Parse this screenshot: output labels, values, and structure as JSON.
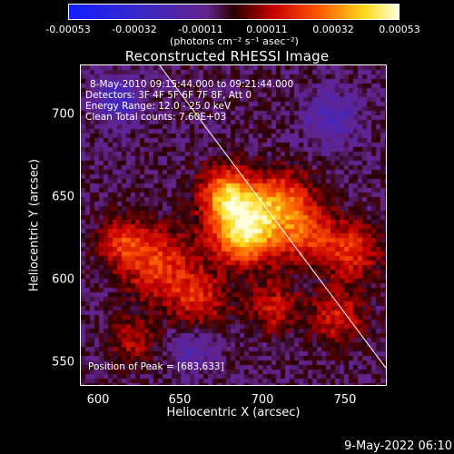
{
  "colorbar": {
    "ticks": [
      "-0.00053",
      "-0.00032",
      "-0.00011",
      "0.00011",
      "0.00032",
      "0.00053"
    ],
    "units": "(photons cm⁻² s⁻¹ asec⁻²)"
  },
  "title": "Reconstructed RHESSI Image",
  "annotations": {
    "time_range": "8-May-2010 09:15:44.000 to 09:21:44.000",
    "detectors": "Detectors: 3F 4F 5F 6F 7F 8F, Att 0",
    "energy": "Energy Range: 12.0 - 25.0 keV",
    "method": "Clean     Total counts: 7.60E+03",
    "peak": "Position of Peak = [683,633]"
  },
  "axes": {
    "xlabel": "Heliocentric X (arcsec)",
    "ylabel": "Heliocentric Y (arcsec)",
    "xticks": [
      "600",
      "650",
      "700",
      "750"
    ],
    "yticks": [
      "700",
      "650",
      "600",
      "550"
    ]
  },
  "footer": "9-May-2022 06:10",
  "chart_data": {
    "type": "heatmap",
    "title": "Reconstructed RHESSI Image",
    "xlabel": "Heliocentric X (arcsec)",
    "ylabel": "Heliocentric Y (arcsec)",
    "xlim": [
      583,
      770
    ],
    "ylim": [
      537,
      733
    ],
    "clim": [
      -0.00053,
      0.00053
    ],
    "peak": [
      683,
      633
    ],
    "colormap": "rhessi-blue-to-hot",
    "sources": [
      {
        "x": 683,
        "y": 633,
        "amp": 1.0,
        "sigma": 14
      },
      {
        "x": 672,
        "y": 655,
        "amp": 0.7,
        "sigma": 11
      },
      {
        "x": 705,
        "y": 650,
        "amp": 0.55,
        "sigma": 13
      },
      {
        "x": 720,
        "y": 630,
        "amp": 0.45,
        "sigma": 12
      },
      {
        "x": 630,
        "y": 612,
        "amp": 0.5,
        "sigma": 15
      },
      {
        "x": 608,
        "y": 625,
        "amp": 0.4,
        "sigma": 10
      },
      {
        "x": 655,
        "y": 590,
        "amp": 0.4,
        "sigma": 12
      },
      {
        "x": 748,
        "y": 620,
        "amp": 0.45,
        "sigma": 12
      },
      {
        "x": 740,
        "y": 580,
        "amp": 0.4,
        "sigma": 11
      },
      {
        "x": 615,
        "y": 565,
        "amp": 0.3,
        "sigma": 10
      },
      {
        "x": 700,
        "y": 585,
        "amp": 0.35,
        "sigma": 11
      },
      {
        "x": 605,
        "y": 712,
        "amp": -0.45,
        "sigma": 10
      },
      {
        "x": 735,
        "y": 700,
        "amp": -0.3,
        "sigma": 12
      },
      {
        "x": 650,
        "y": 560,
        "amp": -0.25,
        "sigma": 10
      }
    ],
    "limb": [
      [
        631,
        733
      ],
      [
        770,
        547
      ]
    ]
  }
}
